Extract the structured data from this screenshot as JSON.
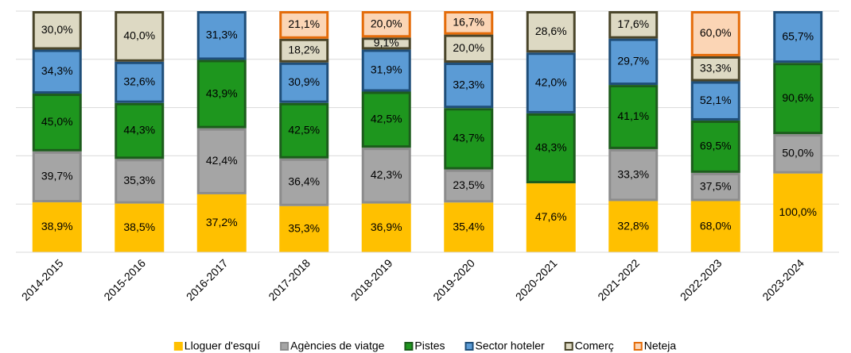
{
  "chart_data": {
    "type": "bar",
    "stacking": "percent",
    "grid": true,
    "categories": [
      "2014-2015",
      "2015-2016",
      "2016-2017",
      "2017-2018",
      "2018-2019",
      "2019-2020",
      "2020-2021",
      "2021-2022",
      "2022-2023",
      "2023-2024"
    ],
    "series": [
      {
        "name": "Lloguer d'esquí",
        "color": "#ffc000",
        "edgecolor": "#ffc000",
        "values": [
          38.9,
          38.5,
          37.2,
          35.3,
          36.9,
          35.4,
          47.6,
          32.8,
          68.0,
          100.0
        ],
        "value_labels": [
          "38,9%",
          "38,5%",
          "37,2%",
          "35,3%",
          "36,9%",
          "35,4%",
          "47,6%",
          "32,8%",
          "68,0%",
          "100,0%"
        ]
      },
      {
        "name": "Agències de viatge",
        "color": "#a5a5a5",
        "edgecolor": "#8c8c8c",
        "values": [
          39.7,
          35.3,
          42.4,
          36.4,
          42.3,
          23.5,
          null,
          33.3,
          37.5,
          50.0
        ],
        "value_labels": [
          "39,7%",
          "35,3%",
          "42,4%",
          "36,4%",
          "42,3%",
          "23,5%",
          null,
          "33,3%",
          "37,5%",
          "50,0%"
        ]
      },
      {
        "name": "Pistes",
        "color": "#1e961e",
        "edgecolor": "#1c5c1c",
        "values": [
          45.0,
          44.3,
          43.9,
          42.5,
          42.5,
          43.7,
          48.3,
          41.1,
          69.5,
          90.6
        ],
        "value_labels": [
          "45,0%",
          "44,3%",
          "43,9%",
          "42,5%",
          "42,5%",
          "43,7%",
          "48,3%",
          "41,1%",
          "69,5%",
          "90,6%"
        ]
      },
      {
        "name": "Sector hoteler",
        "color": "#5b9bd5",
        "edgecolor": "#1f4e79",
        "values": [
          34.3,
          32.6,
          31.3,
          30.9,
          31.9,
          32.3,
          42.0,
          29.7,
          52.1,
          65.7
        ],
        "value_labels": [
          "34,3%",
          "32,6%",
          "31,3%",
          "30,9%",
          "31,9%",
          "32,3%",
          "42,0%",
          "29,7%",
          "52,1%",
          "65,7%"
        ]
      },
      {
        "name": "Comerç",
        "color": "#ddd9c3",
        "edgecolor": "#4a452a",
        "values": [
          30.0,
          40.0,
          null,
          18.2,
          9.1,
          20.0,
          28.6,
          17.6,
          33.3,
          null
        ],
        "value_labels": [
          "30,0%",
          "40,0%",
          null,
          "18,2%",
          "9,1%",
          "20,0%",
          "28,6%",
          "17,6%",
          "33,3%",
          null
        ]
      },
      {
        "name": "Neteja",
        "color": "#fbd5b5",
        "edgecolor": "#e46c0a",
        "values": [
          null,
          null,
          null,
          21.1,
          20.0,
          16.7,
          null,
          null,
          60.0,
          null
        ],
        "value_labels": [
          null,
          null,
          null,
          "21,1%",
          "20,0%",
          "16,7%",
          null,
          null,
          "60,0%",
          null
        ]
      }
    ]
  }
}
